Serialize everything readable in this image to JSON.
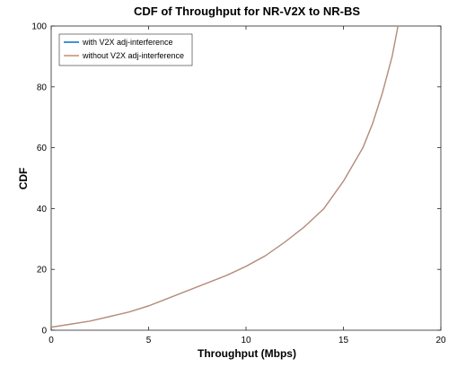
{
  "chart_data": {
    "type": "line",
    "title": "CDF of Throughput for NR-V2X to NR-BS",
    "xlabel": "Throughput (Mbps)",
    "ylabel": "CDF",
    "xlim": [
      0,
      20
    ],
    "ylim": [
      0,
      100
    ],
    "x_ticks": [
      "0",
      "5",
      "10",
      "15",
      "20"
    ],
    "y_ticks": [
      "0",
      "20",
      "40",
      "60",
      "80",
      "100"
    ],
    "grid": false,
    "legend_position": "top-left",
    "series": [
      {
        "name": "with V2X adj-interference",
        "color": "#0072bd",
        "x": [
          0,
          1,
          2,
          3,
          4,
          5,
          6,
          7,
          8,
          9,
          10,
          11,
          12,
          13,
          14,
          15,
          16,
          16.5,
          17,
          17.5,
          17.8
        ],
        "y": [
          1,
          2,
          3,
          4.5,
          6,
          8,
          10.5,
          13,
          15.5,
          18,
          21,
          24.5,
          29,
          34,
          40,
          49,
          60,
          68,
          78,
          90,
          100
        ]
      },
      {
        "name": "without V2X adj-interference",
        "color": "#c98a6e",
        "x": [
          0,
          1,
          2,
          3,
          4,
          5,
          6,
          7,
          8,
          9,
          10,
          11,
          12,
          13,
          14,
          15,
          16,
          16.5,
          17,
          17.5,
          17.8
        ],
        "y": [
          1,
          2,
          3,
          4.5,
          6,
          8,
          10.5,
          13,
          15.5,
          18,
          21,
          24.5,
          29,
          34,
          40,
          49,
          60,
          68,
          78,
          90,
          100
        ]
      }
    ]
  }
}
